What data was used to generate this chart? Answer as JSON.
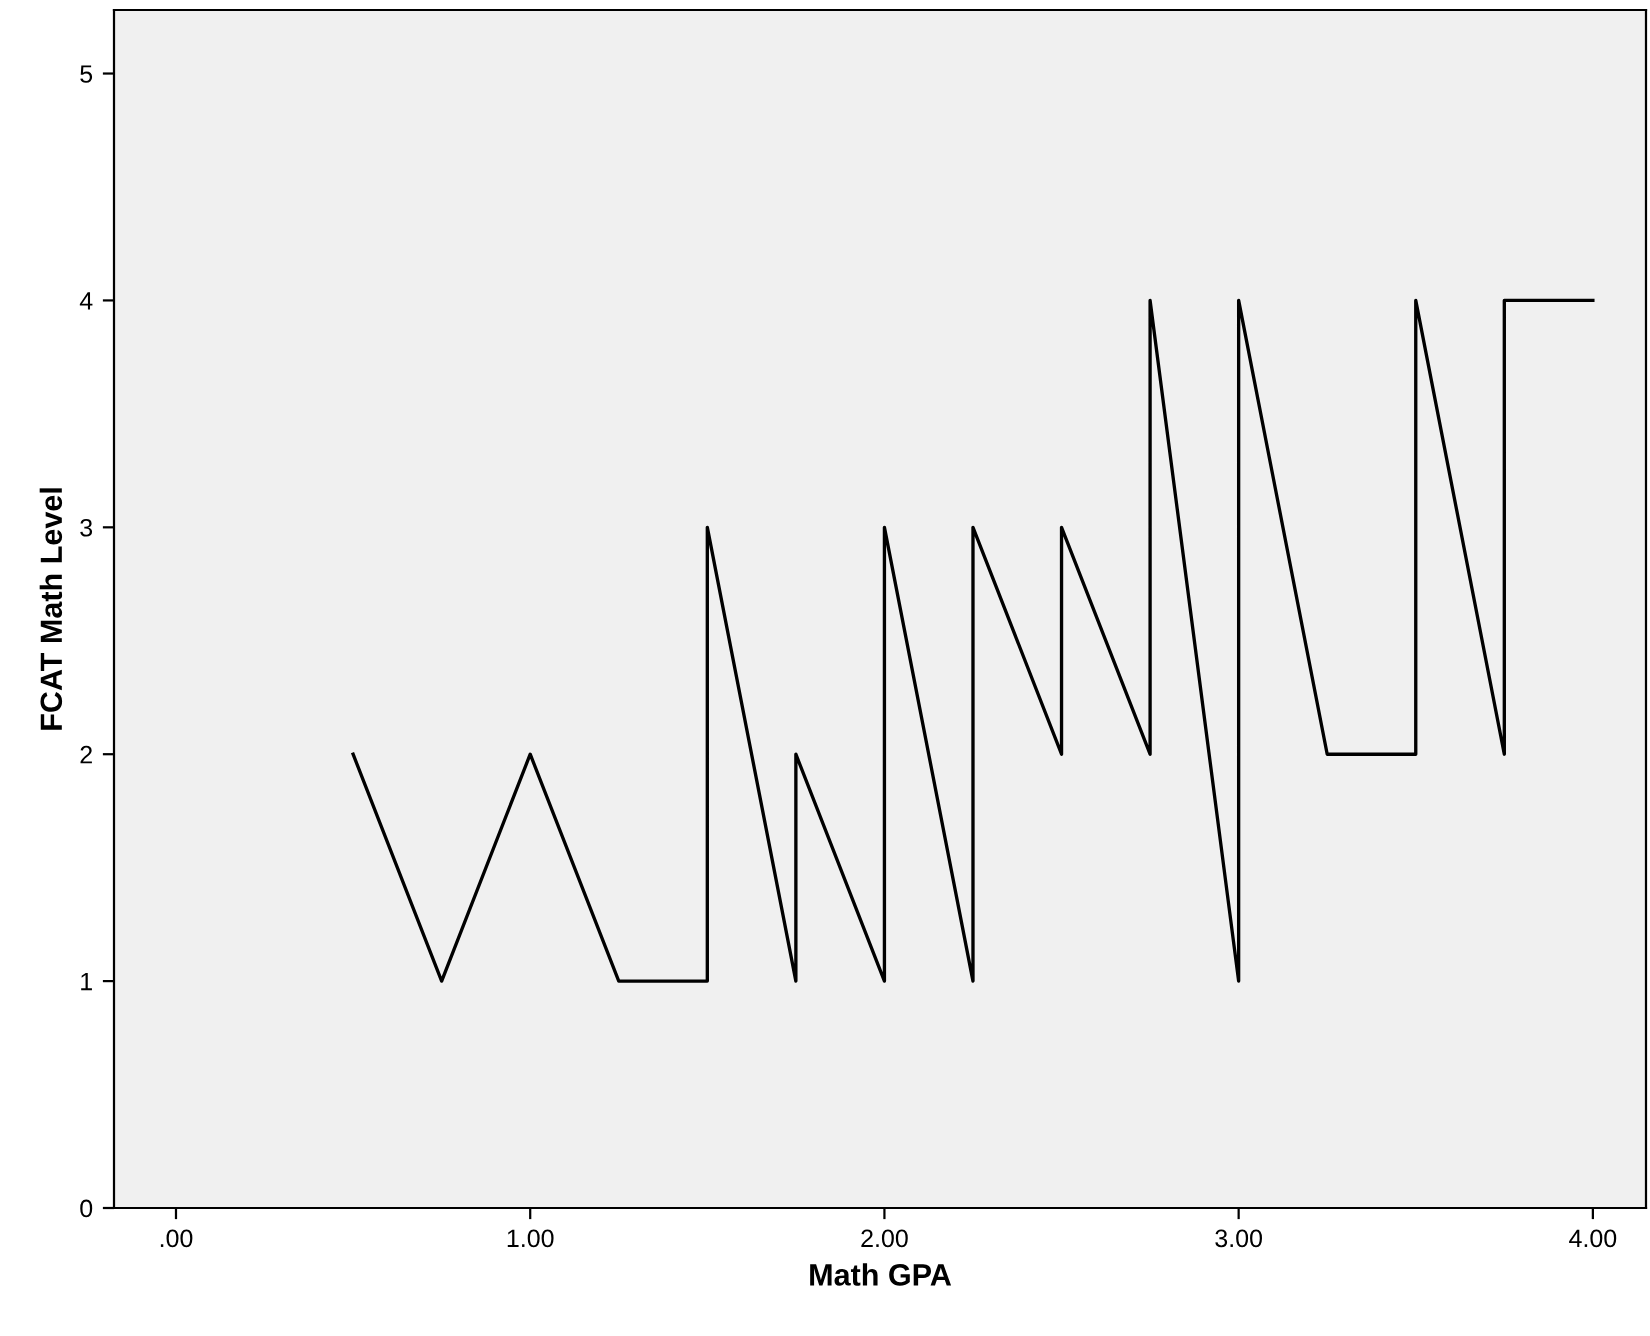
{
  "chart_data": {
    "type": "line",
    "xlabel": "Math GPA",
    "ylabel": "FCAT Math Level",
    "series": [
      {
        "color": "#000000",
        "x": [
          0.5,
          0.75,
          1.0,
          1.25,
          1.5,
          1.5,
          1.75,
          1.75,
          2.0,
          2.0,
          2.25,
          2.25,
          2.5,
          2.5,
          2.75,
          2.75,
          3.0,
          3.0,
          3.25,
          3.5,
          3.5,
          3.75,
          3.75,
          4.0
        ],
        "values": [
          2,
          1,
          2,
          1,
          1,
          3,
          1,
          2,
          1,
          3,
          1,
          3,
          2,
          3,
          2,
          4,
          1,
          4,
          2,
          2,
          4,
          2,
          4,
          4
        ]
      }
    ],
    "xlim": [
      -0.175,
      4.15
    ],
    "ylim": [
      0,
      5.28
    ],
    "xticks": [
      {
        "value": 0,
        "label": ".00"
      },
      {
        "value": 1,
        "label": "1.00"
      },
      {
        "value": 2,
        "label": "2.00"
      },
      {
        "value": 3,
        "label": "3.00"
      },
      {
        "value": 4,
        "label": "4.00"
      }
    ],
    "yticks": [
      0,
      1,
      2,
      3,
      4,
      5
    ],
    "grid": false,
    "legend": false,
    "marker": "none",
    "line_style": "solid"
  }
}
